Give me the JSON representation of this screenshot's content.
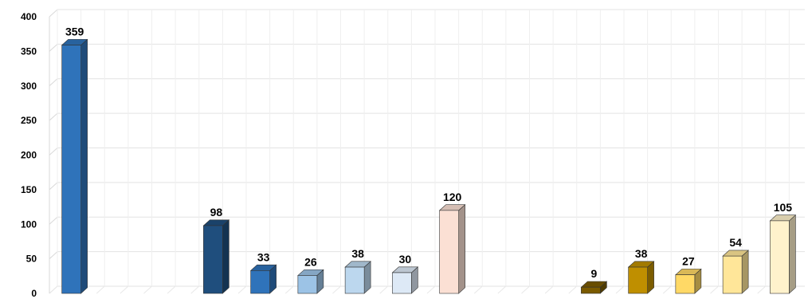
{
  "chart_data": {
    "type": "bar",
    "style": "3d-column",
    "title": "",
    "xlabel": "",
    "ylabel": "",
    "ylim": [
      0,
      400
    ],
    "yticks": [
      0,
      50,
      100,
      150,
      200,
      250,
      300,
      350,
      400
    ],
    "grid": true,
    "legend": "none",
    "slot_count": 16,
    "bars": [
      {
        "slot": 0,
        "value": 359,
        "label": "359",
        "color": "#2f73ba"
      },
      {
        "slot": 3,
        "value": 98,
        "label": "98",
        "color": "#1f4e7d"
      },
      {
        "slot": 4,
        "value": 33,
        "label": "33",
        "color": "#2f73ba"
      },
      {
        "slot": 5,
        "value": 26,
        "label": "26",
        "color": "#9cc3e6"
      },
      {
        "slot": 6,
        "value": 38,
        "label": "38",
        "color": "#bcd7ee"
      },
      {
        "slot": 7,
        "value": 30,
        "label": "30",
        "color": "#dde9f6"
      },
      {
        "slot": 8,
        "value": 120,
        "label": "120",
        "color": "#fbe0d4"
      },
      {
        "slot": 11,
        "value": 9,
        "label": "9",
        "color": "#7a5a00"
      },
      {
        "slot": 12,
        "value": 38,
        "label": "38",
        "color": "#bf8f00"
      },
      {
        "slot": 13,
        "value": 27,
        "label": "27",
        "color": "#ffd966"
      },
      {
        "slot": 14,
        "value": 54,
        "label": "54",
        "color": "#ffe699"
      },
      {
        "slot": 15,
        "value": 105,
        "label": "105",
        "color": "#fff2cc"
      }
    ]
  }
}
